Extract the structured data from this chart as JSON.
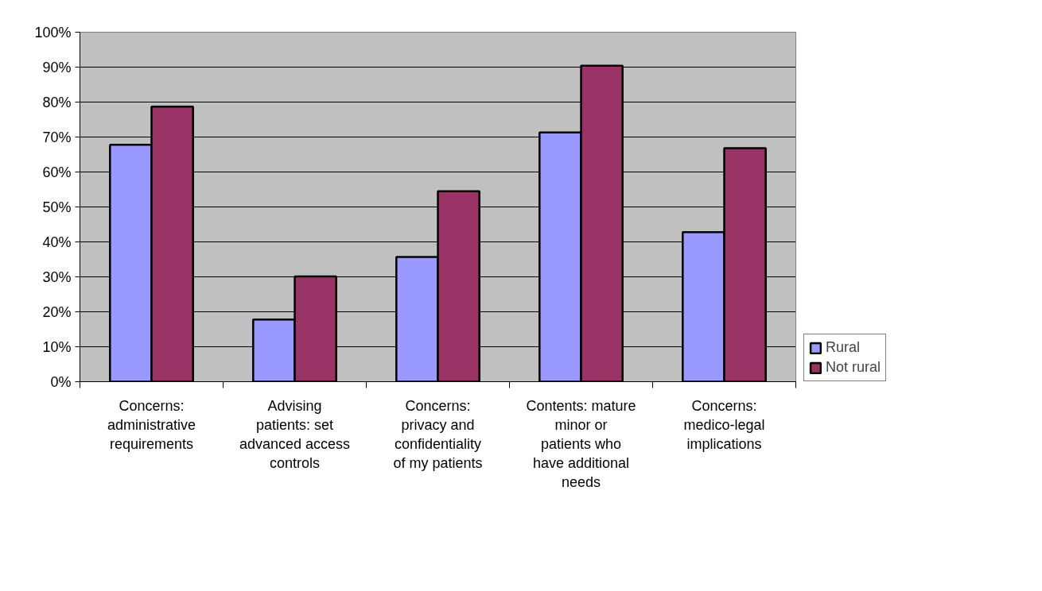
{
  "chart_data": {
    "type": "bar",
    "categories": [
      "Concerns: administrative requirements",
      "Advising patients: set advanced access controls",
      "Concerns: privacy and confidentiality of my patients",
      "Contents: mature minor or patients who have additional needs",
      "Concerns: medico-legal implications"
    ],
    "series": [
      {
        "name": "Rural",
        "color": "#9999ff",
        "values": [
          67.8,
          17.8,
          35.7,
          71.3,
          42.8
        ]
      },
      {
        "name": "Not rural",
        "color": "#993366",
        "values": [
          78.7,
          30.1,
          54.5,
          90.4,
          66.8
        ]
      }
    ],
    "ylim": [
      0,
      100
    ],
    "yticks": [
      {
        "value": 0,
        "label": "0%"
      },
      {
        "value": 10,
        "label": "10%"
      },
      {
        "value": 20,
        "label": "20%"
      },
      {
        "value": 30,
        "label": "30%"
      },
      {
        "value": 40,
        "label": "40%"
      },
      {
        "value": 50,
        "label": "50%"
      },
      {
        "value": 60,
        "label": "60%"
      },
      {
        "value": 70,
        "label": "70%"
      },
      {
        "value": 80,
        "label": "80%"
      },
      {
        "value": 90,
        "label": "90%"
      },
      {
        "value": 100,
        "label": "100%"
      }
    ],
    "grid": "y",
    "legend": "right"
  }
}
